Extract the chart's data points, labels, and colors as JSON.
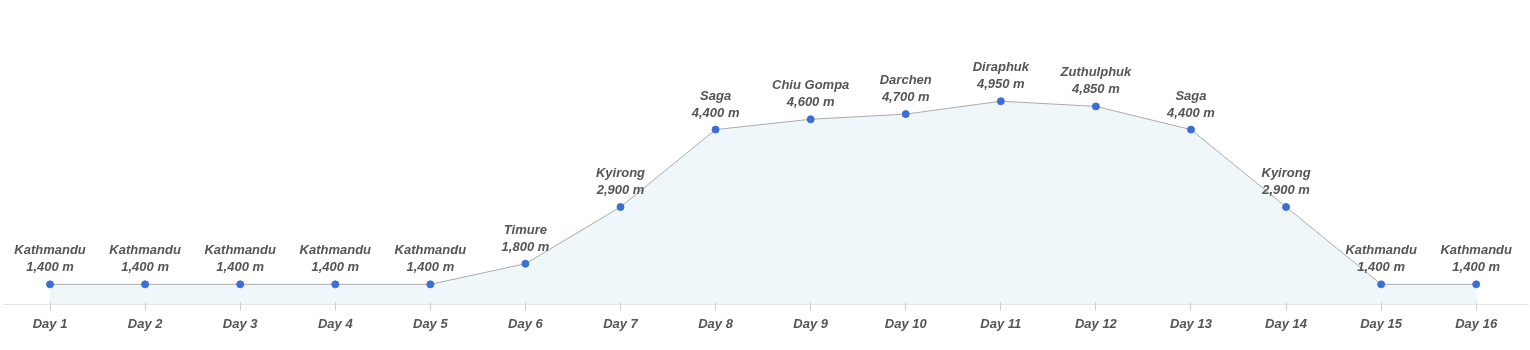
{
  "chart_data": {
    "type": "area",
    "categories": [
      "Day 1",
      "Day 2",
      "Day 3",
      "Day 4",
      "Day 5",
      "Day 6",
      "Day 7",
      "Day 8",
      "Day 9",
      "Day 10",
      "Day 11",
      "Day 12",
      "Day 13",
      "Day 14",
      "Day 15",
      "Day 16"
    ],
    "series": [
      {
        "color": "#3b6fd8",
        "values": [
          1400,
          1400,
          1400,
          1400,
          1400,
          1800,
          2900,
          4400,
          4600,
          4700,
          4950,
          4850,
          4400,
          2900,
          1400,
          1400
        ],
        "value_labels": [
          "1,400 m",
          "1,400 m",
          "1,400 m",
          "1,400 m",
          "1,400 m",
          "1,800 m",
          "2,900 m",
          "4,400 m",
          "4,600 m",
          "4,700 m",
          "4,950 m",
          "4,850 m",
          "4,400 m",
          "2,900 m",
          "1,400 m",
          "1,400 m"
        ]
      }
    ],
    "annotations": [
      {
        "text": "Kathmandu",
        "x": "Day 1",
        "y": 1400
      },
      {
        "text": "Kathmandu",
        "x": "Day 2",
        "y": 1400
      },
      {
        "text": "Kathmandu",
        "x": "Day 3",
        "y": 1400
      },
      {
        "text": "Kathmandu",
        "x": "Day 4",
        "y": 1400
      },
      {
        "text": "Kathmandu",
        "x": "Day 5",
        "y": 1400
      },
      {
        "text": "Timure",
        "x": "Day 6",
        "y": 1800
      },
      {
        "text": "Kyirong",
        "x": "Day 7",
        "y": 2900
      },
      {
        "text": "Saga",
        "x": "Day 8",
        "y": 4400
      },
      {
        "text": "Chiu Gompa",
        "x": "Day 9",
        "y": 4600
      },
      {
        "text": "Darchen",
        "x": "Day 10",
        "y": 4700
      },
      {
        "text": "Diraphuk",
        "x": "Day 11",
        "y": 4950
      },
      {
        "text": "Zuthulphuk",
        "x": "Day 12",
        "y": 4850
      },
      {
        "text": "Saga",
        "x": "Day 13",
        "y": 4400
      },
      {
        "text": "Kyirong",
        "x": "Day 14",
        "y": 2900
      },
      {
        "text": "Kathmandu",
        "x": "Day 15",
        "y": 1400
      },
      {
        "text": "Kathmandu",
        "x": "Day 16",
        "y": 1400
      }
    ],
    "tick_labels": "x",
    "marker": "circle"
  }
}
